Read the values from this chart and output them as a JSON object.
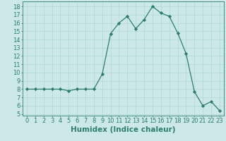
{
  "x": [
    0,
    1,
    2,
    3,
    4,
    5,
    6,
    7,
    8,
    9,
    10,
    11,
    12,
    13,
    14,
    15,
    16,
    17,
    18,
    19,
    20,
    21,
    22,
    23
  ],
  "y": [
    8,
    8,
    8,
    8,
    8,
    7.8,
    8,
    8,
    8,
    9.8,
    14.7,
    16,
    16.8,
    15.3,
    16.4,
    18,
    17.2,
    16.8,
    14.8,
    12.3,
    7.7,
    6,
    6.5,
    5.4
  ],
  "line_color": "#2e7d6e",
  "marker": "D",
  "marker_size": 2.2,
  "bg_color": "#cce9e7",
  "grid_color": "#afd8d5",
  "xlabel": "Humidex (Indice chaleur)",
  "xlim": [
    -0.5,
    23.5
  ],
  "ylim": [
    4.8,
    18.6
  ],
  "yticks": [
    5,
    6,
    7,
    8,
    9,
    10,
    11,
    12,
    13,
    14,
    15,
    16,
    17,
    18
  ],
  "xticks": [
    0,
    1,
    2,
    3,
    4,
    5,
    6,
    7,
    8,
    9,
    10,
    11,
    12,
    13,
    14,
    15,
    16,
    17,
    18,
    19,
    20,
    21,
    22,
    23
  ],
  "tick_label_fontsize": 6,
  "xlabel_fontsize": 7.5,
  "axis_color": "#2e7d6e",
  "tick_color": "#2e7d6e",
  "label_color": "#2e7d6e"
}
